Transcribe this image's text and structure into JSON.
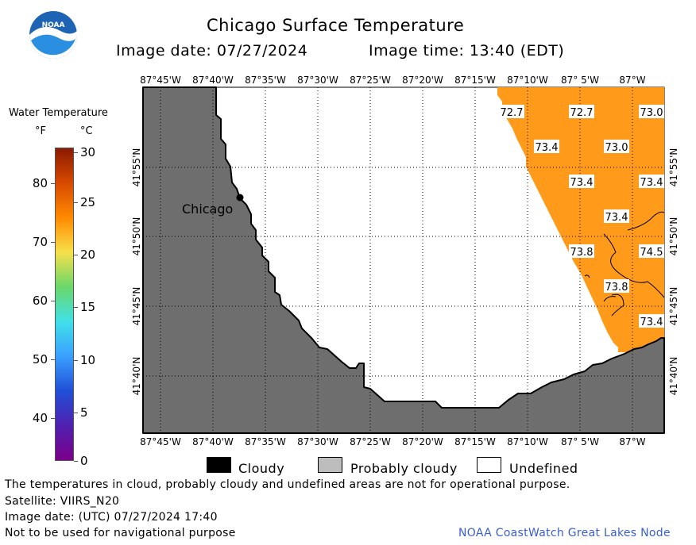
{
  "header": {
    "title": "Chicago Surface Temperature",
    "image_date_label": "Image date: 07/27/2024",
    "image_time_label": "Image time: 13:40 (EDT)"
  },
  "logo": {
    "text": "NOAA"
  },
  "colorbar": {
    "title": "Water Temperature",
    "unit_f": "°F",
    "unit_c": "°C",
    "f_ticks": [
      "80",
      "70",
      "60",
      "50",
      "40"
    ],
    "c_ticks": [
      "30",
      "25",
      "20",
      "15",
      "10",
      "5",
      "0"
    ],
    "colors": [
      "#8b1a00",
      "#d84a00",
      "#ff8a00",
      "#f7e04a",
      "#6ad86a",
      "#40e0e8",
      "#3aa0ff",
      "#2050d8",
      "#5020b0",
      "#7a008a"
    ]
  },
  "map": {
    "lon_labels": [
      "87°45'W",
      "87°40'W",
      "87°35'W",
      "87°30'W",
      "87°25'W",
      "87°20'W",
      "87°15'W",
      "87°10'W",
      "87° 5'W",
      "87°W"
    ],
    "lat_labels": [
      "41°55'N",
      "41°50'N",
      "41°45'N",
      "41°40'N"
    ],
    "city_label": "Chicago",
    "land_color": "#6e6e6e",
    "water_warm_color": "#ff9a1a",
    "temps": [
      "72.7",
      "72.7",
      "73.0",
      "73.4",
      "73.0",
      "73.4",
      "73.4",
      "73.4",
      "73.8",
      "74.5",
      "73.8",
      "73.4"
    ]
  },
  "legend": {
    "items": [
      {
        "label": "Cloudy",
        "color": "#000000"
      },
      {
        "label": "Probably cloudy",
        "color": "#bdbdbd"
      },
      {
        "label": "Undefined",
        "color": "#ffffff"
      }
    ]
  },
  "footer": {
    "disclaimer": "The temperatures in cloud, probably cloudy and undefined areas are not for operational purpose.",
    "satellite": "Satellite: VIIRS_N20",
    "utc_date": "Image date: (UTC) 07/27/2024  17:40",
    "nav_warning": "Not to be used for navigational purpose",
    "credit": "NOAA CoastWatch Great Lakes Node",
    "credit_color": "#3a5fcd"
  }
}
